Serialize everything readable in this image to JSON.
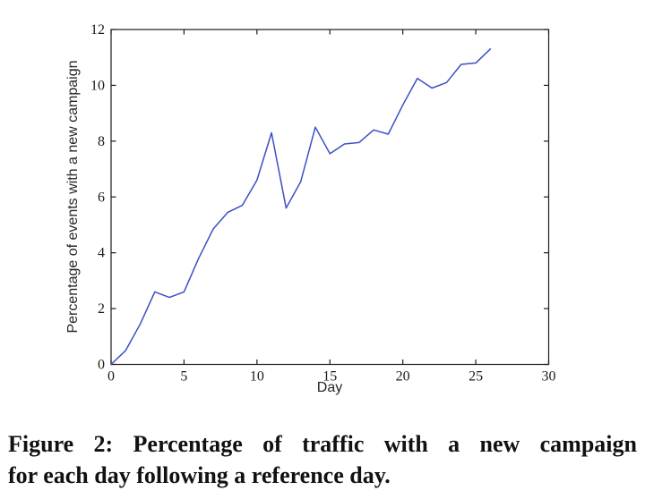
{
  "figure": {
    "caption": {
      "line1": "Figure 2: Percentage of traffic with a new campaign",
      "line2": "for each day following a reference day."
    }
  },
  "chart_data": {
    "type": "line",
    "title": "",
    "xlabel": "Day",
    "ylabel": "Percentage of events with a new campaign",
    "x": [
      0,
      1,
      2,
      3,
      4,
      5,
      6,
      7,
      8,
      9,
      10,
      11,
      12,
      13,
      14,
      15,
      16,
      17,
      18,
      19,
      20,
      21,
      22,
      23,
      24,
      25,
      26
    ],
    "values": [
      0.0,
      0.5,
      1.45,
      2.6,
      2.4,
      2.6,
      3.8,
      4.85,
      5.45,
      5.7,
      6.6,
      8.3,
      5.6,
      6.55,
      8.5,
      7.55,
      7.9,
      7.95,
      8.4,
      8.25,
      9.3,
      10.25,
      9.9,
      10.1,
      10.75,
      10.8,
      11.3
    ],
    "xlim": [
      0,
      30
    ],
    "ylim": [
      0,
      12
    ],
    "xticks": [
      0,
      5,
      10,
      15,
      20,
      25,
      30
    ],
    "yticks": [
      0,
      2,
      4,
      6,
      8,
      10,
      12
    ],
    "grid": false,
    "legend": "none",
    "line_color": "#3b4fc4",
    "axis_color": "#1c1c1c",
    "series_name": "percentage of events with a new campaign"
  }
}
